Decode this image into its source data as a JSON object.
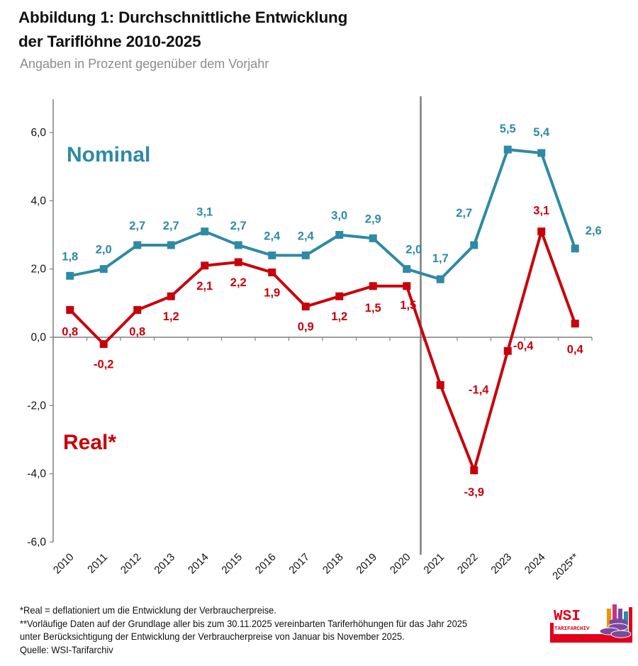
{
  "header": {
    "title_line1": "Abbildung 1: Durchschnittliche Entwicklung",
    "title_line2": "der Tariflöhne 2010-2025",
    "subtitle": "Angaben in Prozent gegenüber dem Vorjahr"
  },
  "colors": {
    "nominal": "#2e8aa5",
    "real": "#c8000a",
    "axis": "#7f7f7f",
    "divider": "#7f7f7f"
  },
  "chart_data": {
    "type": "line",
    "title": "Abbildung 1: Durchschnittliche Entwicklung der Tariflöhne 2010-2025",
    "subtitle": "Angaben in Prozent gegenüber dem Vorjahr",
    "xlabel": "",
    "ylabel": "",
    "categories": [
      "2010",
      "2011",
      "2012",
      "2013",
      "2014",
      "2015",
      "2016",
      "2017",
      "2018",
      "2019",
      "2020",
      "2021",
      "2022",
      "2023",
      "2024",
      "2025**"
    ],
    "ylim": [
      -6.0,
      7.0
    ],
    "yticks": [
      -6.0,
      -4.0,
      -2.0,
      0.0,
      2.0,
      4.0,
      6.0
    ],
    "ytick_labels": [
      "-6,0",
      "-4,0",
      "-2,0",
      "0,0",
      "2,0",
      "4,0",
      "6,0"
    ],
    "grid": false,
    "vertical_divider_after": "2020",
    "series": [
      {
        "name": "Nominal",
        "label": "Nominal",
        "values": [
          1.8,
          2.0,
          2.7,
          2.7,
          3.1,
          2.7,
          2.4,
          2.4,
          3.0,
          2.9,
          2.0,
          1.7,
          2.7,
          5.5,
          5.4,
          2.6
        ],
        "data_labels": [
          "1,8",
          "2,0",
          "2,7",
          "2,7",
          "3,1",
          "2,7",
          "2,4",
          "2,4",
          "3,0",
          "2,9",
          "2,0",
          "1,7",
          "2,7",
          "5,5",
          "5,4",
          "2,6"
        ],
        "marker": "square"
      },
      {
        "name": "Real*",
        "label": "Real*",
        "values": [
          0.8,
          -0.2,
          0.8,
          1.2,
          2.1,
          2.2,
          1.9,
          0.9,
          1.2,
          1.5,
          1.5,
          -1.4,
          -3.9,
          -0.4,
          3.1,
          0.4
        ],
        "data_labels": [
          "0,8",
          "-0,2",
          "0,8",
          "1,2",
          "2,1",
          "2,2",
          "1,9",
          "0,9",
          "1,2",
          "1,5",
          "1,5",
          "-1,4",
          "-3,9",
          "-0,4",
          "3,1",
          "0,4"
        ],
        "marker": "square"
      }
    ]
  },
  "footnotes": {
    "line1": "*Real = deflationiert um die Entwicklung der Verbraucherpreise.",
    "line2": "**Vorläufige Daten auf der Grundlage aller bis zum 30.11.2025 vereinbarten Tariferhöhungen für das Jahr 2025",
    "line3": "unter Berücksichtigung der Entwicklung der Verbraucherpreise von Januar bis November 2025.",
    "source": "Quelle: WSI-Tarifarchiv"
  },
  "logo": {
    "line1": "WSI",
    "line2": "TARIFARCHIV"
  }
}
